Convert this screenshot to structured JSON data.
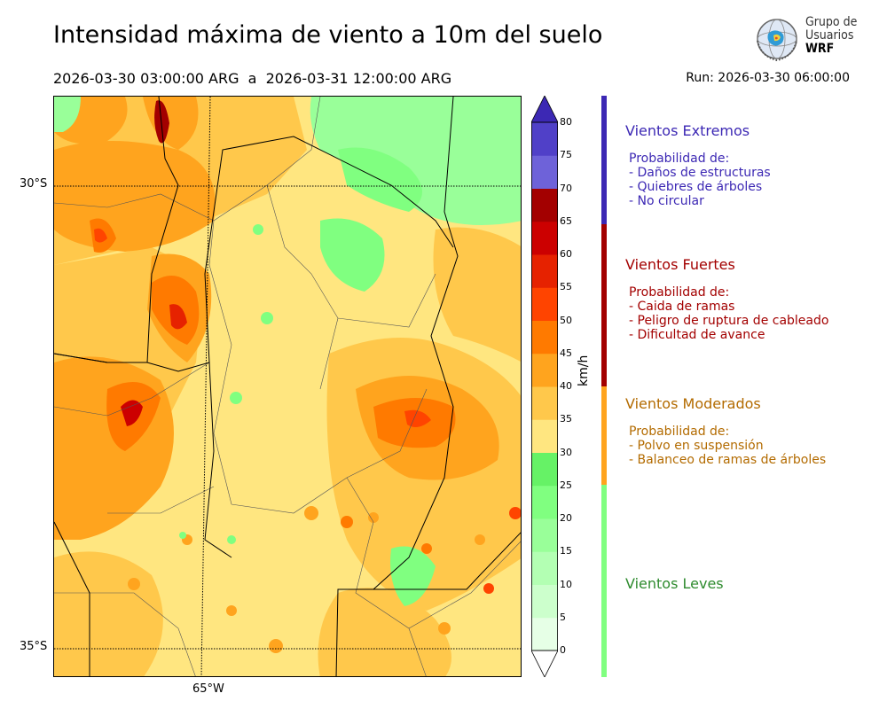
{
  "title": "Intensidad máxima de viento a 10m del suelo",
  "period": "2026-03-30 03:00:00 ARG  a  2026-03-31 12:00:00 ARG",
  "run": "Run: 2026-03-30 06:00:00",
  "logo": {
    "line1": "Grupo de",
    "line2": "Usuarios",
    "line3": "WRF"
  },
  "lat_labels": [
    "30°S",
    "35°S"
  ],
  "lon_labels": [
    "65°W"
  ],
  "colorbar": {
    "unit": "km/h",
    "ticks": [
      "0",
      "5",
      "10",
      "15",
      "20",
      "25",
      "30",
      "35",
      "40",
      "45",
      "50",
      "55",
      "60",
      "65",
      "70",
      "75",
      "80"
    ],
    "colors": [
      "#e6ffe6",
      "#ccffcc",
      "#b3ffb3",
      "#99ff99",
      "#80ff80",
      "#66f266",
      "#ffe680",
      "#ffc84b",
      "#ffa41e",
      "#ff7a00",
      "#ff4400",
      "#e62200",
      "#cc0000",
      "#a30000",
      "#6e62d9",
      "#5040c8",
      "#3c28b4"
    ]
  },
  "categories": [
    {
      "name": "Vientos Extremos",
      "color": "#3c28b4",
      "subtitle": "Probabilidad de:",
      "items": [
        "- Daños de estructuras",
        "- Quiebres de árboles",
        "- No circular"
      ]
    },
    {
      "name": "Vientos Fuertes",
      "color": "#a30000",
      "subtitle": "Probabilidad de:",
      "items": [
        "- Caida de ramas",
        "- Peligro de ruptura de cableado",
        "- Dificultad de avance"
      ]
    },
    {
      "name": "Vientos Moderados",
      "color": "#b36b00",
      "subtitle": "Probabilidad de:",
      "items": [
        "- Polvo en suspensión",
        "- Balanceo de ramas de árboles"
      ]
    },
    {
      "name": "Vientos Leves",
      "color": "#2e8b2e",
      "subtitle": "",
      "items": []
    }
  ],
  "side_bar_colors": {
    "extremos": "#3c28b4",
    "fuertes": "#a30000",
    "moderados": "#ffa41e",
    "leves": "#80ff80"
  }
}
